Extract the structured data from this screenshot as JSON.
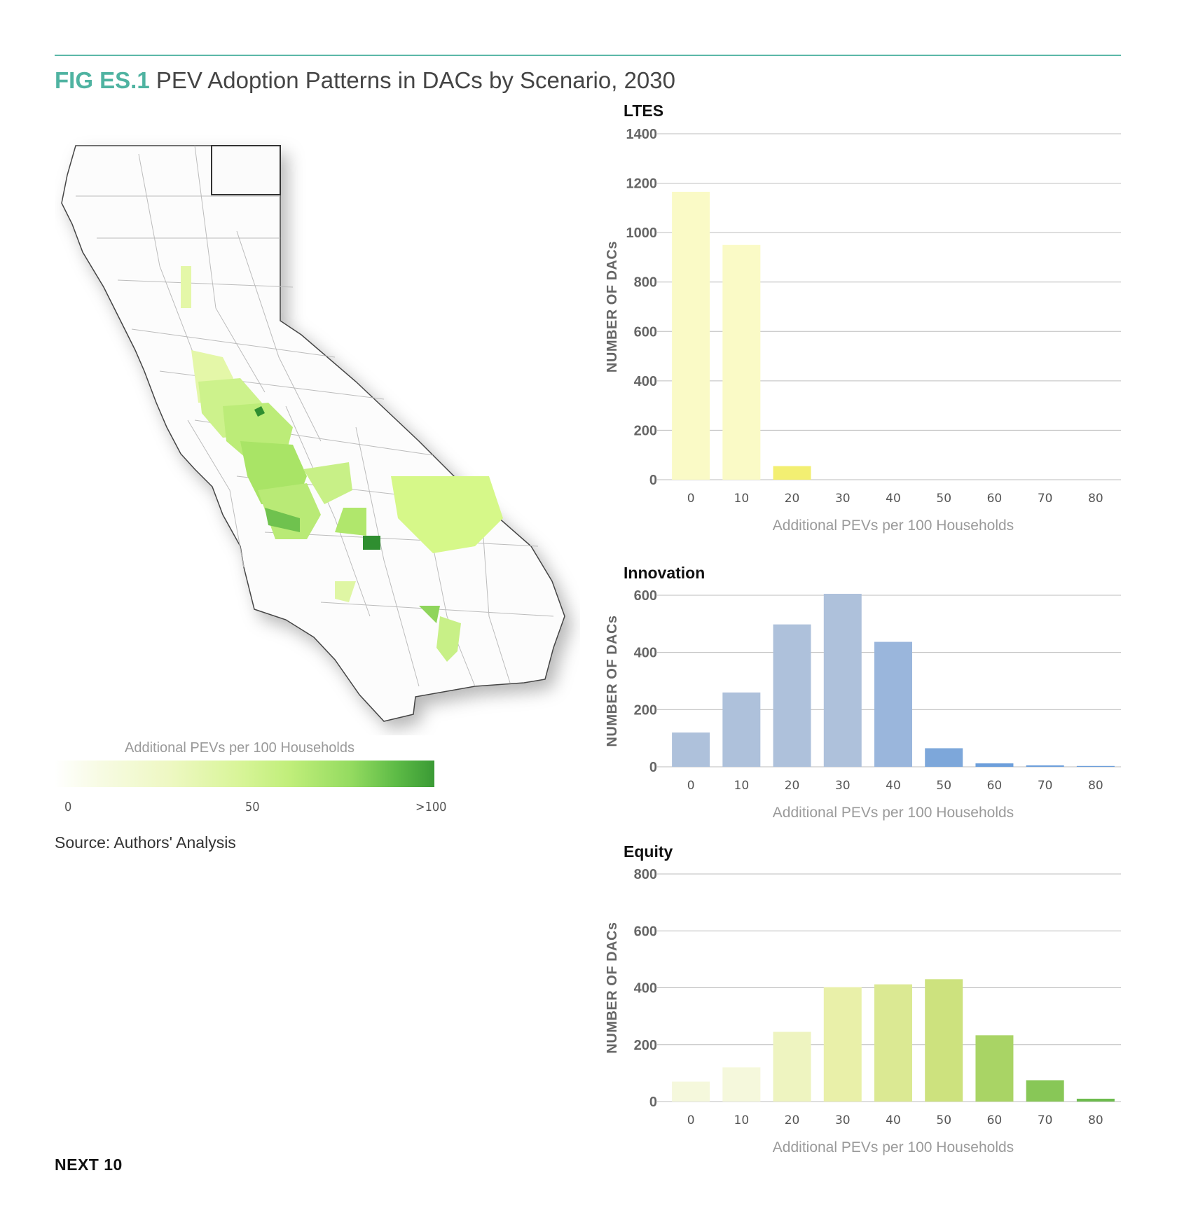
{
  "figure": {
    "number": "FIG ES.1",
    "title": "PEV Adoption Patterns in DACs by Scenario, 2030"
  },
  "map": {
    "legend_title": "Additional PEVs per 100 Households",
    "legend_ticks": [
      "0",
      "50",
      ">100"
    ],
    "color_scale": [
      "#ffffff",
      "#eef8c3",
      "#c0ee7a",
      "#5dbb46",
      "#3a9a35"
    ]
  },
  "source": "Source: Authors' Analysis",
  "footer": "NEXT 10",
  "chart_data": [
    {
      "type": "bar",
      "title": "LTES",
      "xlabel": "Additional PEVs per 100 Households",
      "ylabel": "NUMBER OF DACs",
      "categories": [
        "0",
        "10",
        "20",
        "30",
        "40",
        "50",
        "60",
        "70",
        "80"
      ],
      "values": [
        1165,
        950,
        55,
        0,
        0,
        0,
        0,
        0,
        0
      ],
      "colors": [
        "#fafac6",
        "#fafac6",
        "#f3ef72",
        "#fafac6",
        "#fafac6",
        "#fafac6",
        "#fafac6",
        "#fafac6",
        "#fafac6"
      ],
      "yticks": [
        "0",
        "200",
        "400",
        "600",
        "800",
        "1000",
        "1200",
        "1400"
      ],
      "ylim": [
        0,
        1400
      ],
      "grid": true
    },
    {
      "type": "bar",
      "title": "Innovation",
      "xlabel": "Additional PEVs per 100 Households",
      "ylabel": "NUMBER OF DACs",
      "categories": [
        "0",
        "10",
        "20",
        "30",
        "40",
        "50",
        "60",
        "70",
        "80"
      ],
      "values": [
        120,
        260,
        498,
        605,
        437,
        65,
        12,
        5,
        3
      ],
      "colors": [
        "#aec1db",
        "#aec1db",
        "#aec1db",
        "#aec1db",
        "#9ab6dc",
        "#7da7da",
        "#6d9fdb",
        "#6d9fdb",
        "#6d9fdb"
      ],
      "yticks": [
        "0",
        "200",
        "400",
        "600"
      ],
      "ylim": [
        0,
        600
      ],
      "grid": true
    },
    {
      "type": "bar",
      "title": "Equity",
      "xlabel": "Additional PEVs per 100 Households",
      "ylabel": "NUMBER OF DACs",
      "categories": [
        "0",
        "10",
        "20",
        "30",
        "40",
        "50",
        "60",
        "70",
        "80"
      ],
      "values": [
        70,
        120,
        245,
        402,
        412,
        430,
        233,
        75,
        10
      ],
      "colors": [
        "#f5f8dc",
        "#f5f8dc",
        "#eef4c0",
        "#e9f0a9",
        "#dbe993",
        "#cde27e",
        "#a9d465",
        "#88c757",
        "#6dbb4e"
      ],
      "yticks": [
        "0",
        "200",
        "400",
        "600",
        "800"
      ],
      "ylim": [
        0,
        800
      ],
      "grid": true
    }
  ]
}
